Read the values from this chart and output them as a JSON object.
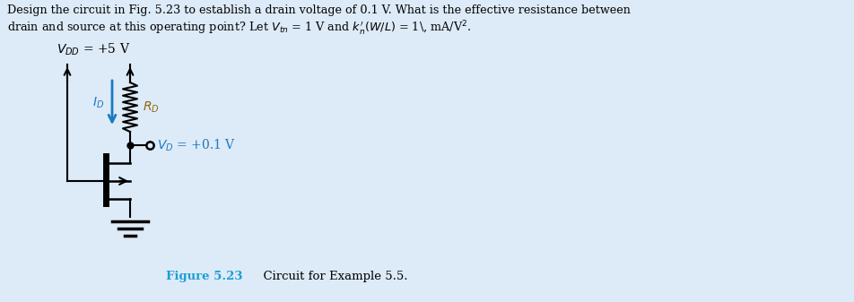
{
  "bg_color": "#ddeaf7",
  "text_color": "#000000",
  "circuit_color": "#000000",
  "blue_color": "#1a7abf",
  "rd_label_color": "#8B6914",
  "fig_label_color": "#1a9fd4",
  "title_text_line1": "Design the circuit in Fig. 5.23 to establish a drain voltage of 0.1 V. What is the effective resistance between",
  "title_text_line2": "drain and source at this operating point? Let $V_{tn}$ = 1 V and $k_n^{\\prime}(W/L)$ = 1\\, mA/V$^2$.",
  "vdd_label": "$V_{DD}$ = +5 V",
  "id_label": "$I_D$",
  "rd_label": "$R_D$",
  "vd_label": "$V_D$ = +0.1 V",
  "figure_label": "Figure 5.23",
  "figure_caption": "  Circuit for Example 5.5.",
  "figsize": [
    9.52,
    3.37
  ],
  "dpi": 100
}
